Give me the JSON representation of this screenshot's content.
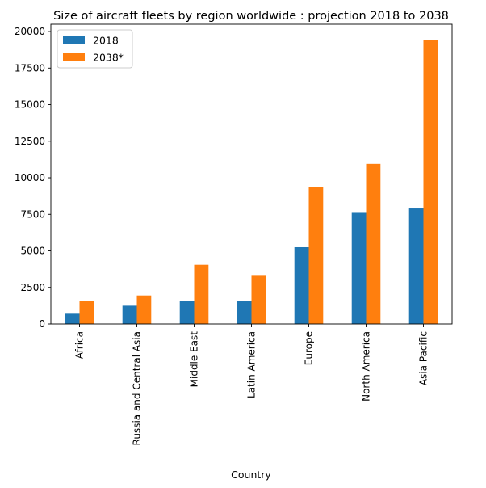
{
  "chart_data": {
    "type": "bar",
    "title": "Size of aircraft fleets by region worldwide : projection 2018 to 2038",
    "xlabel": "Country",
    "ylabel": "",
    "categories": [
      "Africa",
      "Russia and Central Asia",
      "Middle East",
      "Latin America",
      "Europe",
      "North America",
      "Asia Pacific"
    ],
    "series": [
      {
        "name": "2018",
        "color": "#1f77b4",
        "values": [
          700,
          1250,
          1550,
          1600,
          5250,
          7600,
          7900
        ]
      },
      {
        "name": "2038*",
        "color": "#ff7f0e",
        "values": [
          1600,
          1950,
          4050,
          3350,
          9350,
          10950,
          19450
        ]
      }
    ],
    "ylim": [
      0,
      20500
    ],
    "yticks": [
      0,
      2500,
      5000,
      7500,
      10000,
      12500,
      15000,
      17500,
      20000
    ],
    "ytick_labels": [
      "0",
      "2500",
      "5000",
      "7500",
      "10000",
      "12500",
      "15000",
      "17500",
      "20000"
    ],
    "grid": false,
    "legend_position": "top-left"
  }
}
